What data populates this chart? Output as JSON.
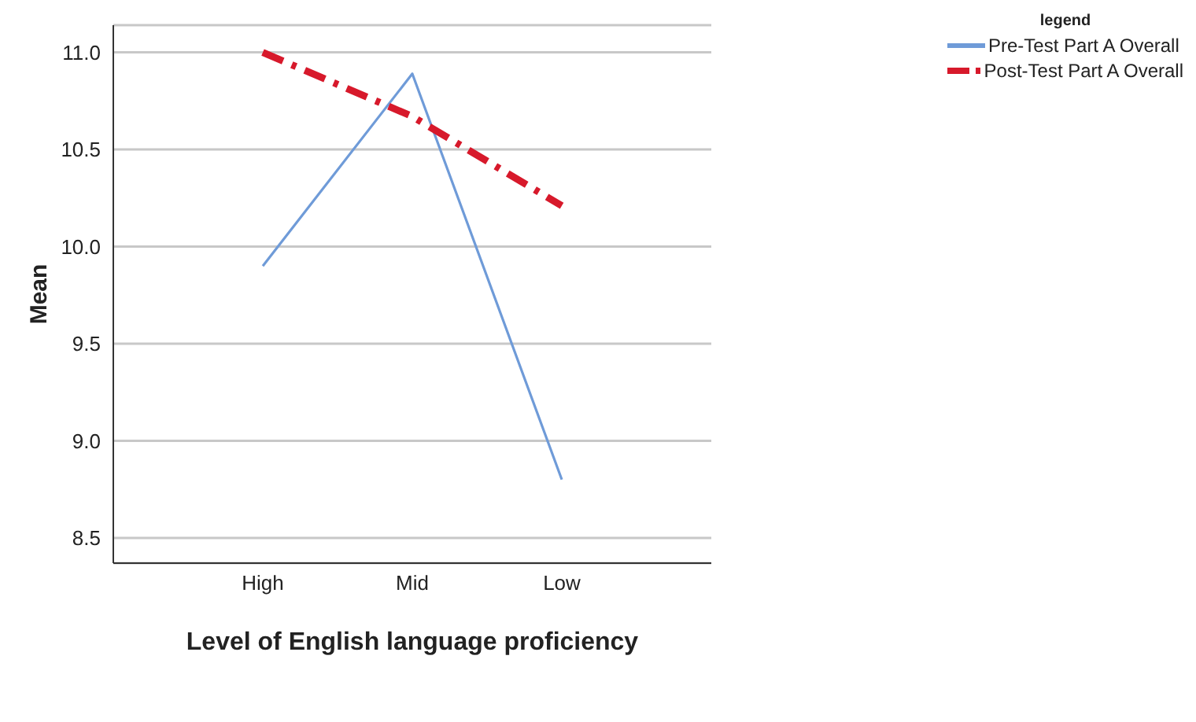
{
  "chart_data": {
    "type": "line",
    "xlabel": "Level of English language proficiency",
    "ylabel": "Mean",
    "legend_title": "legend",
    "categories": [
      "High",
      "Mid",
      "Low"
    ],
    "series": [
      {
        "name": "Pre-Test Part A Overall",
        "color": "#6f9bd8",
        "values": [
          9.9,
          10.89,
          8.8
        ],
        "line_style": "solid"
      },
      {
        "name": "Post-Test Part A Overall",
        "color": "#d7192b",
        "values": [
          11.0,
          10.67,
          10.21
        ],
        "line_style": "dashed"
      }
    ],
    "ylim": [
      8.37,
      11.14
    ],
    "yticks": [
      8.5,
      {
        "value": 9,
        "label": "9.0"
      },
      9.5,
      {
        "value": 10,
        "label": "10.0"
      },
      10.5,
      {
        "value": 11,
        "label": "11.0"
      }
    ],
    "grid": "y",
    "legend": "top right",
    "marker": "none"
  }
}
